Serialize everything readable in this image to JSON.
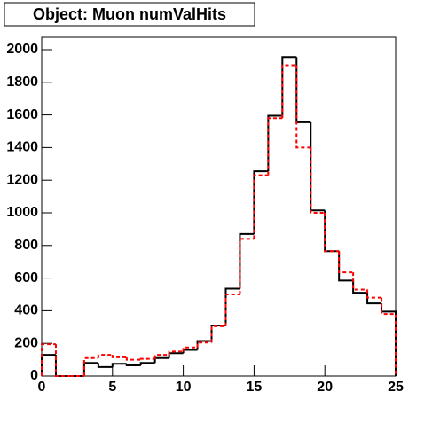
{
  "chart_data": {
    "type": "histogram",
    "title": "Object: Muon numValHits",
    "bins": [
      0,
      1,
      2,
      3,
      4,
      5,
      6,
      7,
      8,
      9,
      10,
      11,
      12,
      13,
      14,
      15,
      16,
      17,
      18,
      19,
      20,
      21,
      22,
      23,
      24,
      25
    ],
    "series": [
      {
        "color": "#000000",
        "values": [
          130,
          0,
          0,
          80,
          55,
          75,
          65,
          80,
          110,
          140,
          160,
          215,
          310,
          535,
          870,
          1255,
          1595,
          1955,
          1555,
          1015,
          765,
          585,
          510,
          445,
          395
        ]
      },
      {
        "color": "#ff0000",
        "dashed": true,
        "values": [
          195,
          0,
          0,
          110,
          130,
          115,
          100,
          105,
          130,
          150,
          175,
          205,
          305,
          500,
          840,
          1230,
          1580,
          1905,
          1400,
          1000,
          765,
          635,
          530,
          480,
          380
        ]
      }
    ],
    "xlim": [
      0,
      25
    ],
    "xticks": [
      0,
      5,
      10,
      15,
      20,
      25
    ],
    "ylim": [
      0,
      2076
    ],
    "yticks": [
      0,
      200,
      400,
      600,
      800,
      1000,
      1200,
      1400,
      1600,
      1800,
      2000
    ]
  }
}
